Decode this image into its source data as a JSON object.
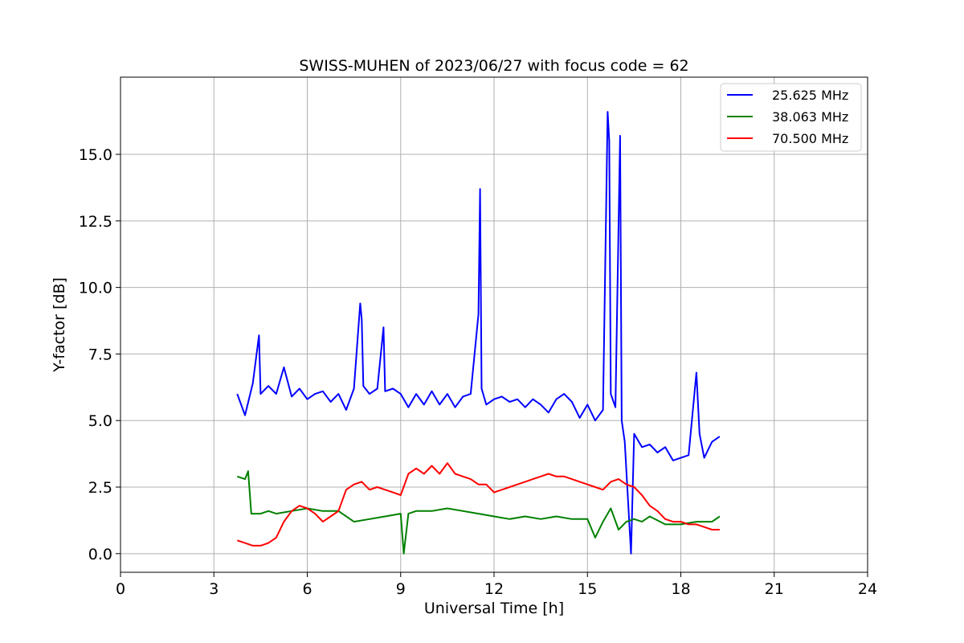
{
  "chart_data": {
    "type": "line",
    "title": "SWISS-MUHEN of 2023/06/27 with focus code = 62",
    "xlabel": "Universal Time [h]",
    "ylabel": "Y-factor [dB]",
    "xlim": [
      0,
      24
    ],
    "ylim": [
      -0.7,
      17.9
    ],
    "xticks": [
      0,
      3,
      6,
      9,
      12,
      15,
      18,
      21,
      24
    ],
    "xtick_labels": [
      "0",
      "3",
      "6",
      "9",
      "12",
      "15",
      "18",
      "21",
      "24"
    ],
    "yticks": [
      0.0,
      2.5,
      5.0,
      7.5,
      10.0,
      12.5,
      15.0
    ],
    "ytick_labels": [
      "0.0",
      "2.5",
      "5.0",
      "7.5",
      "10.0",
      "12.5",
      "15.0"
    ],
    "grid": true,
    "legend_position": "top-right",
    "series": [
      {
        "name": "25.625 MHz",
        "color": "#0000ff",
        "x": [
          3.75,
          4.0,
          4.25,
          4.45,
          4.5,
          4.75,
          5.0,
          5.25,
          5.5,
          5.75,
          6.0,
          6.25,
          6.5,
          6.75,
          7.0,
          7.25,
          7.5,
          7.7,
          7.75,
          7.8,
          8.0,
          8.25,
          8.45,
          8.5,
          8.75,
          9.0,
          9.25,
          9.5,
          9.75,
          10.0,
          10.25,
          10.5,
          10.75,
          11.0,
          11.25,
          11.5,
          11.55,
          11.6,
          11.75,
          12.0,
          12.25,
          12.5,
          12.75,
          13.0,
          13.25,
          13.5,
          13.75,
          14.0,
          14.25,
          14.5,
          14.75,
          15.0,
          15.25,
          15.5,
          15.65,
          15.7,
          15.75,
          15.9,
          16.05,
          16.1,
          16.2,
          16.4,
          16.5,
          16.75,
          17.0,
          17.25,
          17.5,
          17.75,
          18.0,
          18.25,
          18.5,
          18.6,
          18.75,
          19.0,
          19.25
        ],
        "y": [
          6.0,
          5.2,
          6.4,
          8.2,
          6.0,
          6.3,
          6.0,
          7.0,
          5.9,
          6.2,
          5.8,
          6.0,
          6.1,
          5.7,
          6.0,
          5.4,
          6.2,
          9.4,
          8.8,
          6.3,
          6.0,
          6.2,
          8.5,
          6.1,
          6.2,
          6.0,
          5.5,
          6.0,
          5.6,
          6.1,
          5.6,
          6.0,
          5.5,
          5.9,
          6.0,
          9.0,
          13.7,
          6.2,
          5.6,
          5.8,
          5.9,
          5.7,
          5.8,
          5.5,
          5.8,
          5.6,
          5.3,
          5.8,
          6.0,
          5.7,
          5.1,
          5.6,
          5.0,
          5.4,
          16.6,
          15.5,
          6.0,
          5.5,
          15.7,
          5.0,
          4.2,
          0.0,
          4.5,
          4.0,
          4.1,
          3.8,
          4.0,
          3.5,
          3.6,
          3.7,
          6.8,
          4.5,
          3.6,
          4.2,
          4.4
        ]
      },
      {
        "name": "38.063 MHz",
        "color": "#008000",
        "x": [
          3.75,
          4.0,
          4.1,
          4.2,
          4.5,
          4.75,
          5.0,
          5.5,
          6.0,
          6.5,
          7.0,
          7.5,
          8.0,
          8.5,
          9.0,
          9.1,
          9.25,
          9.5,
          10.0,
          10.5,
          11.0,
          11.5,
          12.0,
          12.5,
          13.0,
          13.5,
          14.0,
          14.5,
          15.0,
          15.25,
          15.5,
          15.75,
          16.0,
          16.25,
          16.5,
          16.75,
          17.0,
          17.5,
          18.0,
          18.5,
          19.0,
          19.25
        ],
        "y": [
          2.9,
          2.8,
          3.1,
          1.5,
          1.5,
          1.6,
          1.5,
          1.6,
          1.7,
          1.6,
          1.6,
          1.2,
          1.3,
          1.4,
          1.5,
          0.0,
          1.5,
          1.6,
          1.6,
          1.7,
          1.6,
          1.5,
          1.4,
          1.3,
          1.4,
          1.3,
          1.4,
          1.3,
          1.3,
          0.6,
          1.2,
          1.7,
          0.9,
          1.2,
          1.3,
          1.2,
          1.4,
          1.1,
          1.1,
          1.2,
          1.2,
          1.4
        ]
      },
      {
        "name": "70.500 MHz",
        "color": "#ff0000",
        "x": [
          3.75,
          4.0,
          4.25,
          4.5,
          4.75,
          5.0,
          5.25,
          5.5,
          5.75,
          6.0,
          6.25,
          6.5,
          6.75,
          7.0,
          7.25,
          7.5,
          7.75,
          8.0,
          8.25,
          8.5,
          8.75,
          9.0,
          9.25,
          9.5,
          9.75,
          10.0,
          10.25,
          10.5,
          10.75,
          11.0,
          11.25,
          11.5,
          11.75,
          12.0,
          12.25,
          12.5,
          12.75,
          13.0,
          13.25,
          13.5,
          13.75,
          14.0,
          14.25,
          14.5,
          14.75,
          15.0,
          15.25,
          15.5,
          15.75,
          16.0,
          16.25,
          16.5,
          16.75,
          17.0,
          17.25,
          17.5,
          17.75,
          18.0,
          18.25,
          18.5,
          18.75,
          19.0,
          19.25
        ],
        "y": [
          0.5,
          0.4,
          0.3,
          0.3,
          0.4,
          0.6,
          1.2,
          1.6,
          1.8,
          1.7,
          1.5,
          1.2,
          1.4,
          1.6,
          2.4,
          2.6,
          2.7,
          2.4,
          2.5,
          2.4,
          2.3,
          2.2,
          3.0,
          3.2,
          3.0,
          3.3,
          3.0,
          3.4,
          3.0,
          2.9,
          2.8,
          2.6,
          2.6,
          2.3,
          2.4,
          2.5,
          2.6,
          2.7,
          2.8,
          2.9,
          3.0,
          2.9,
          2.9,
          2.8,
          2.7,
          2.6,
          2.5,
          2.4,
          2.7,
          2.8,
          2.6,
          2.5,
          2.2,
          1.8,
          1.6,
          1.3,
          1.2,
          1.2,
          1.1,
          1.1,
          1.0,
          0.9,
          0.9
        ]
      }
    ]
  }
}
